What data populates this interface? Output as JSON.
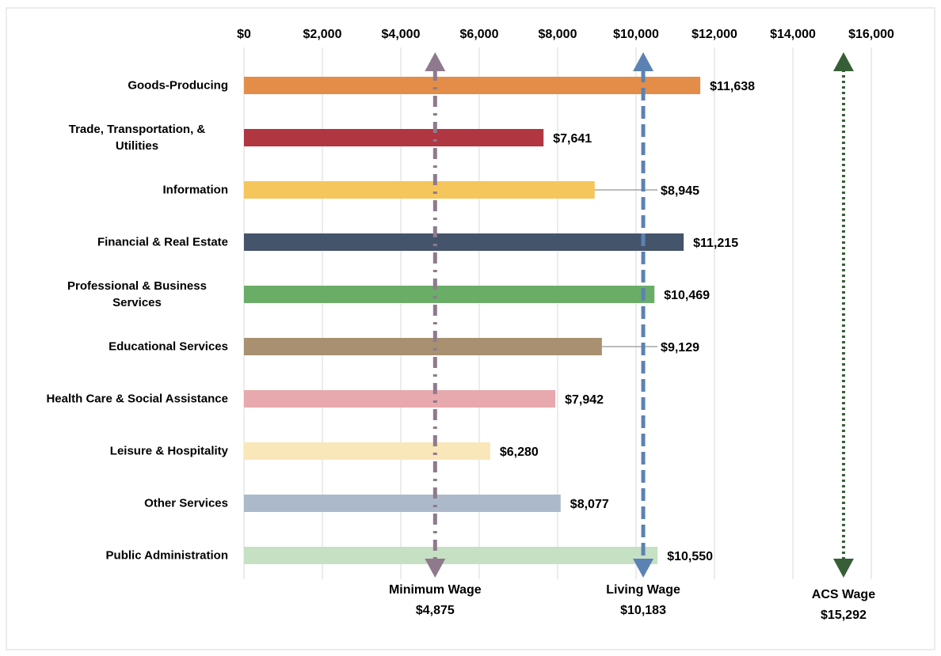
{
  "chart_data": {
    "type": "bar",
    "orientation": "horizontal",
    "categories": [
      "Goods-Producing",
      "Trade, Transportation, & Utilities",
      "Information",
      "Financial & Real Estate",
      "Professional & Business Services",
      "Educational Services",
      "Health Care & Social Assistance",
      "Leisure & Hospitality",
      "Other Services",
      "Public Administration"
    ],
    "values": [
      11638,
      7641,
      8945,
      11215,
      10469,
      9129,
      7942,
      6280,
      8077,
      10550
    ],
    "value_labels": [
      "$11,638",
      "$7,641",
      "$8,945",
      "$11,215",
      "$10,469",
      "$9,129",
      "$7,942",
      "$6,280",
      "$8,077",
      "$10,550"
    ],
    "colors": [
      "#e38d48",
      "#b03642",
      "#f5c65b",
      "#44546a",
      "#6aad67",
      "#a89070",
      "#e7a9ad",
      "#f9e7b9",
      "#acb9ca",
      "#c6e0c4"
    ],
    "xlim": [
      0,
      16000
    ],
    "xticks": [
      {
        "value": 0,
        "label": "$0"
      },
      {
        "value": 2000,
        "label": "$2,000"
      },
      {
        "value": 4000,
        "label": "$4,000"
      },
      {
        "value": 6000,
        "label": "$6,000"
      },
      {
        "value": 8000,
        "label": "$8,000"
      },
      {
        "value": 10000,
        "label": "$10,000"
      },
      {
        "value": 12000,
        "label": "$12,000"
      },
      {
        "value": 14000,
        "label": "$14,000"
      },
      {
        "value": 16000,
        "label": "$16,000"
      }
    ],
    "grid": true,
    "reference_lines": [
      {
        "name": "Minimum Wage",
        "value": 4875,
        "label": "$4,875",
        "color": "#8f7a8d",
        "style": "dashdot"
      },
      {
        "name": "Living Wage",
        "value": 10183,
        "label": "$10,183",
        "color": "#5b82b3",
        "style": "dashed"
      },
      {
        "name": "ACS Wage",
        "value": 15292,
        "label": "$15,292",
        "color": "#375f37",
        "style": "dotted"
      }
    ]
  }
}
